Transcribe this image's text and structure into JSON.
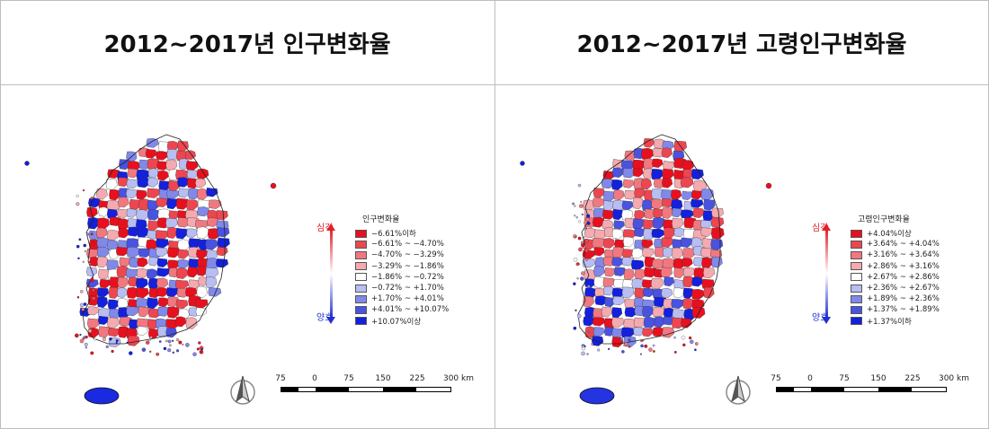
{
  "panels": [
    {
      "title": "2012~2017년 인구변화율",
      "legend_title": "인구변화율",
      "arrow_top": "심각",
      "arrow_bottom": "양호",
      "legend": [
        {
          "label": "−6.61%이하",
          "color": "#e8101e"
        },
        {
          "label": "−6.61% ~ −4.70%",
          "color": "#ee4650"
        },
        {
          "label": "−4.70% ~ −3.29%",
          "color": "#f17880"
        },
        {
          "label": "−3.29% ~ −1.86%",
          "color": "#f4aab0"
        },
        {
          "label": "−1.86% ~ −0.72%",
          "color": "#ffffff"
        },
        {
          "label": "−0.72% ~ +1.70%",
          "color": "#b8bdf2"
        },
        {
          "label": "+1.70% ~ +4.01%",
          "color": "#8088ea"
        },
        {
          "label": "+4.01% ~ +10.07%",
          "color": "#4a52e0"
        },
        {
          "label": "+10.07%이상",
          "color": "#1420dc"
        }
      ],
      "palette": [
        0.22,
        0.13,
        0.1,
        0.08,
        0.07,
        0.1,
        0.09,
        0.09,
        0.12
      ]
    },
    {
      "title": "2012~2017년 고령인구변화율",
      "legend_title": "고령인구변화율",
      "arrow_top": "심각",
      "arrow_bottom": "양호",
      "legend": [
        {
          "label": "+4.04%이상",
          "color": "#e8101e"
        },
        {
          "label": "+3.64% ~ +4.04%",
          "color": "#ee4650"
        },
        {
          "label": "+3.16% ~ +3.64%",
          "color": "#f17880"
        },
        {
          "label": "+2.86% ~ +3.16%",
          "color": "#f4aab0"
        },
        {
          "label": "+2.67% ~ +2.86%",
          "color": "#ffffff"
        },
        {
          "label": "+2.36% ~ +2.67%",
          "color": "#b8bdf2"
        },
        {
          "label": "+1.89% ~ +2.36%",
          "color": "#8088ea"
        },
        {
          "label": "+1.37% ~ +1.89%",
          "color": "#4a52e0"
        },
        {
          "label": "+1.37%이하",
          "color": "#1420dc"
        }
      ],
      "palette": [
        0.16,
        0.14,
        0.12,
        0.12,
        0.06,
        0.09,
        0.09,
        0.1,
        0.12
      ]
    }
  ],
  "scale_bar": {
    "ticks": [
      "75",
      "0",
      "75",
      "150",
      "225",
      "300 km"
    ]
  },
  "icons": {
    "north_arrow": "north-arrow-icon"
  }
}
